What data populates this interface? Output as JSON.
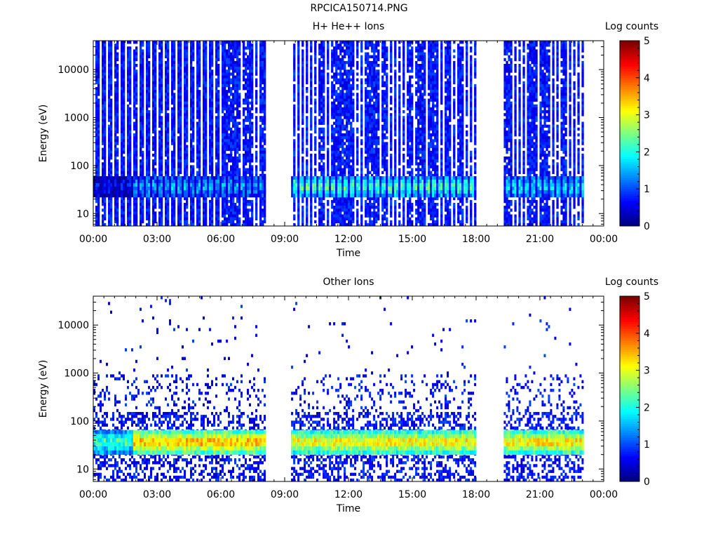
{
  "figure": {
    "title": "RPCICA150714.PNG"
  },
  "chart_data": [
    {
      "type": "heatmap",
      "title": "H+ He++ Ions",
      "xlabel": "Time",
      "ylabel": "Energy (eV)",
      "x_ticks": [
        "00:00",
        "03:00",
        "06:00",
        "09:00",
        "12:00",
        "15:00",
        "18:00",
        "21:00",
        "00:00"
      ],
      "xlim_hours": [
        0,
        24
      ],
      "ylim": [
        5.5,
        40000
      ],
      "y_scale": "log",
      "y_ticks": [
        {
          "value": 10,
          "label": "10"
        },
        {
          "value": 100,
          "label": "100"
        },
        {
          "value": 1000,
          "label": "1000"
        },
        {
          "value": 10000,
          "label": "10000"
        }
      ],
      "colorbar": {
        "label": "Log counts",
        "range": [
          0,
          5
        ],
        "ticks": [
          "0",
          "1",
          "2",
          "3",
          "4",
          "5"
        ]
      },
      "data_intervals_hours": [
        [
          0.0,
          8.1
        ],
        [
          9.3,
          18.0
        ],
        [
          19.3,
          23.0
        ]
      ],
      "band_energy_eV": [
        22,
        60
      ],
      "band_level": [
        [
          0,
          1.8,
          0.6
        ],
        [
          1.8,
          8.1,
          1.5
        ],
        [
          9.3,
          18.0,
          2.4
        ],
        [
          19.3,
          23.0,
          1.9
        ]
      ],
      "background": "striped"
    },
    {
      "type": "heatmap",
      "title": "Other Ions",
      "xlabel": "Time",
      "ylabel": "Energy (eV)",
      "x_ticks": [
        "00:00",
        "03:00",
        "06:00",
        "09:00",
        "12:00",
        "15:00",
        "18:00",
        "21:00",
        "00:00"
      ],
      "xlim_hours": [
        0,
        24
      ],
      "ylim": [
        5.5,
        40000
      ],
      "y_scale": "log",
      "y_ticks": [
        {
          "value": 10,
          "label": "10"
        },
        {
          "value": 100,
          "label": "100"
        },
        {
          "value": 1000,
          "label": "1000"
        },
        {
          "value": 10000,
          "label": "10000"
        }
      ],
      "colorbar": {
        "label": "Log counts",
        "range": [
          0,
          5
        ],
        "ticks": [
          "0",
          "1",
          "2",
          "3",
          "4",
          "5"
        ]
      },
      "data_intervals_hours": [
        [
          0.0,
          8.1
        ],
        [
          9.3,
          18.0
        ],
        [
          19.3,
          23.0
        ]
      ],
      "band_energy_eV": [
        20,
        65
      ],
      "band_level": [
        [
          0,
          1.8,
          2.2
        ],
        [
          1.8,
          8.1,
          3.6
        ],
        [
          9.3,
          18.0,
          3.3
        ],
        [
          19.3,
          23.0,
          3.4
        ]
      ],
      "background": "sparse"
    }
  ]
}
